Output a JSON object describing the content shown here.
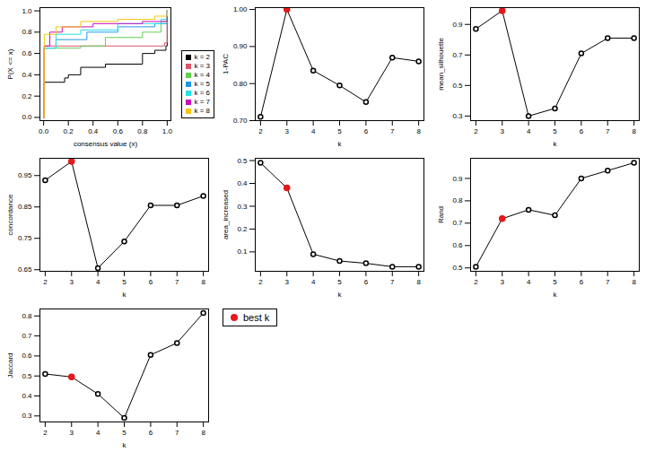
{
  "chart_data": [
    {
      "type": "ecdf",
      "x_label": "consensus value (x)",
      "y_label": "P(X <= x)",
      "xlim": [
        -0.03,
        1.03
      ],
      "ylim": [
        -0.03,
        1.03
      ],
      "xticks": [
        {
          "value": 0,
          "label": "0.0"
        },
        {
          "value": 0.2,
          "label": "0.2"
        },
        {
          "value": 0.4,
          "label": "0.4"
        },
        {
          "value": 0.6,
          "label": "0.6"
        },
        {
          "value": 0.8,
          "label": "0.8"
        },
        {
          "value": 1,
          "label": "1.0"
        }
      ],
      "yticks": [
        {
          "value": 0,
          "label": "0.0"
        },
        {
          "value": 0.2,
          "label": "0.2"
        },
        {
          "value": 0.4,
          "label": "0.4"
        },
        {
          "value": 0.6,
          "label": "0.6"
        },
        {
          "value": 0.8,
          "label": "0.8"
        },
        {
          "value": 1,
          "label": "1.0"
        }
      ],
      "legend": "bottomright",
      "series": [
        {
          "name": "k = 2",
          "color": "#000000",
          "x": [
            0,
            0.005,
            0.17,
            0.2,
            0.3,
            0.5,
            0.8,
            0.9,
            0.99,
            1
          ],
          "values": [
            0,
            0.33,
            0.37,
            0.4,
            0.47,
            0.5,
            0.6,
            0.63,
            0.67,
            1
          ]
        },
        {
          "name": "k = 3",
          "color": "#DF536B",
          "x": [
            0,
            0.005,
            0.98,
            1
          ],
          "values": [
            0,
            0.67,
            0.7,
            1
          ]
        },
        {
          "name": "k = 4",
          "color": "#61D04F",
          "x": [
            0,
            0.005,
            0.3,
            0.5,
            0.8,
            0.95,
            1
          ],
          "values": [
            0,
            0.65,
            0.67,
            0.75,
            0.8,
            0.9,
            1
          ]
        },
        {
          "name": "k = 5",
          "color": "#2297E6",
          "x": [
            0,
            0.005,
            0.1,
            0.35,
            0.6,
            0.9,
            1
          ],
          "values": [
            0,
            0.65,
            0.73,
            0.8,
            0.85,
            0.88,
            1
          ]
        },
        {
          "name": "k = 6",
          "color": "#28E2E5",
          "x": [
            0,
            0.005,
            0.1,
            0.3,
            0.6,
            0.95,
            1
          ],
          "values": [
            0,
            0.65,
            0.78,
            0.82,
            0.88,
            0.92,
            1
          ]
        },
        {
          "name": "k = 7",
          "color": "#CD0BBC",
          "x": [
            0,
            0.005,
            0.05,
            0.15,
            0.4,
            0.8,
            1
          ],
          "values": [
            0,
            0.67,
            0.8,
            0.85,
            0.88,
            0.9,
            1
          ]
        },
        {
          "name": "k = 8",
          "color": "#F5C710",
          "x": [
            0,
            0.005,
            0.1,
            0.3,
            0.6,
            0.9,
            1
          ],
          "values": [
            0,
            0.78,
            0.85,
            0.9,
            0.92,
            0.95,
            1
          ]
        }
      ]
    },
    {
      "type": "line",
      "x_label": "k",
      "y_label": "1-PAC",
      "x": [
        2,
        3,
        4,
        5,
        6,
        7,
        8
      ],
      "values": [
        0.71,
        1.0,
        0.835,
        0.795,
        0.75,
        0.87,
        0.86
      ],
      "color": "#000000",
      "marker": "circle",
      "best_k": 3,
      "xlim": [
        1.8,
        8.2
      ],
      "xticks": [
        2,
        3,
        4,
        5,
        6,
        7,
        8
      ],
      "ylim": [
        0.7,
        1.005
      ],
      "yticks": [
        {
          "value": 0.7,
          "label": "0.70"
        },
        {
          "value": 0.8,
          "label": "0.80"
        },
        {
          "value": 0.9,
          "label": "0.90"
        },
        {
          "value": 1,
          "label": "1.00"
        }
      ]
    },
    {
      "type": "line",
      "x_label": "k",
      "y_label": "mean_silhouette",
      "x": [
        2,
        3,
        4,
        5,
        6,
        7,
        8
      ],
      "values": [
        0.87,
        0.99,
        0.3,
        0.35,
        0.71,
        0.81,
        0.81
      ],
      "color": "#000000",
      "marker": "circle",
      "best_k": 3,
      "xlim": [
        1.8,
        8.2
      ],
      "xticks": [
        2,
        3,
        4,
        5,
        6,
        7,
        8
      ],
      "ylim": [
        0.27,
        1.01
      ],
      "yticks": [
        0.3,
        0.5,
        0.7,
        0.9
      ]
    },
    {
      "type": "line",
      "x_label": "k",
      "y_label": "concordance",
      "x": [
        2,
        3,
        4,
        5,
        6,
        7,
        8
      ],
      "values": [
        0.935,
        0.995,
        0.655,
        0.74,
        0.855,
        0.855,
        0.885
      ],
      "color": "#000000",
      "marker": "circle",
      "best_k": 3,
      "xlim": [
        1.8,
        8.2
      ],
      "xticks": [
        2,
        3,
        4,
        5,
        6,
        7,
        8
      ],
      "ylim": [
        0.645,
        1.005
      ],
      "yticks": [
        0.65,
        0.75,
        0.85,
        0.95
      ]
    },
    {
      "type": "line",
      "x_label": "k",
      "y_label": "area_increased",
      "x": [
        2,
        3,
        4,
        5,
        6,
        7,
        8
      ],
      "values": [
        0.49,
        0.38,
        0.09,
        0.06,
        0.05,
        0.035,
        0.035
      ],
      "color": "#000000",
      "marker": "circle",
      "best_k": 3,
      "xlim": [
        1.8,
        8.2
      ],
      "xticks": [
        2,
        3,
        4,
        5,
        6,
        7,
        8
      ],
      "ylim": [
        0.015,
        0.51
      ],
      "yticks": [
        0.1,
        0.2,
        0.3,
        0.4,
        0.5
      ]
    },
    {
      "type": "line",
      "x_label": "k",
      "y_label": "Rand",
      "x": [
        2,
        3,
        4,
        5,
        6,
        7,
        8
      ],
      "values": [
        0.505,
        0.72,
        0.76,
        0.735,
        0.9,
        0.935,
        0.97
      ],
      "color": "#000000",
      "marker": "circle",
      "best_k": 3,
      "xlim": [
        1.8,
        8.2
      ],
      "xticks": [
        2,
        3,
        4,
        5,
        6,
        7,
        8
      ],
      "ylim": [
        0.485,
        0.99
      ],
      "yticks": [
        0.5,
        0.6,
        0.7,
        0.8,
        0.9
      ]
    },
    {
      "type": "line",
      "x_label": "k",
      "y_label": "Jaccard",
      "x": [
        2,
        3,
        4,
        5,
        6,
        7,
        8
      ],
      "values": [
        0.51,
        0.495,
        0.41,
        0.29,
        0.605,
        0.665,
        0.815
      ],
      "color": "#000000",
      "marker": "circle",
      "best_k": 3,
      "xlim": [
        1.8,
        8.2
      ],
      "xticks": [
        2,
        3,
        4,
        5,
        6,
        7,
        8
      ],
      "ylim": [
        0.27,
        0.835
      ],
      "yticks": [
        0.3,
        0.4,
        0.5,
        0.6,
        0.7,
        0.8
      ]
    },
    {
      "type": "legend",
      "series": [
        {
          "name": "best k",
          "color": "#E41A1C",
          "marker": "circle"
        }
      ]
    }
  ]
}
